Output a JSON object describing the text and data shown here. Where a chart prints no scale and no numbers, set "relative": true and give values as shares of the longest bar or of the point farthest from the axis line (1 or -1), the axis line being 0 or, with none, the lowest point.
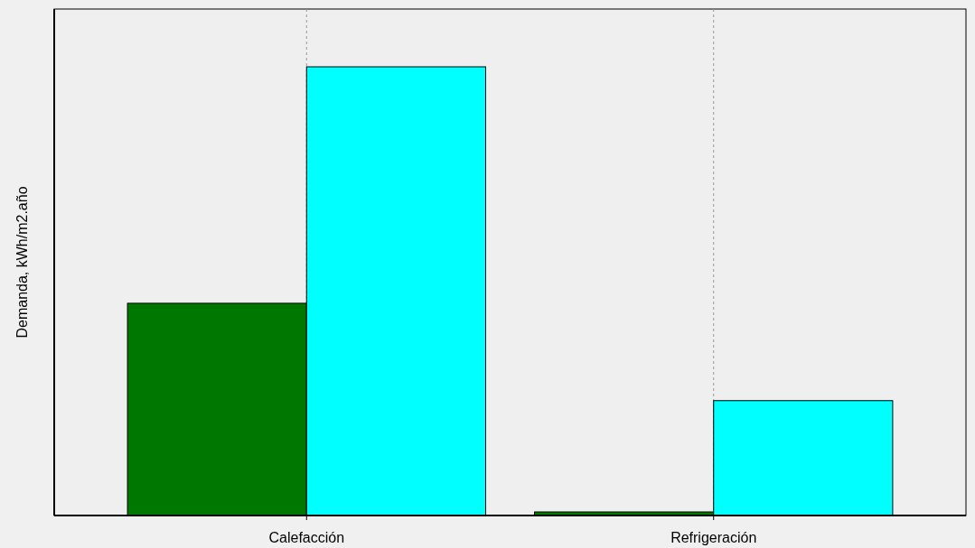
{
  "chart_data": {
    "type": "bar",
    "ylabel": "Demanda, kWh/m2.año",
    "categories": [
      "Calefacción",
      "Refrigeración"
    ],
    "relative": true,
    "grid": "x",
    "series": [
      {
        "color": "#007800",
        "values": [
          0.473,
          0.008
        ]
      },
      {
        "color": "#00ffff",
        "values": [
          1,
          0.256
        ]
      }
    ]
  }
}
